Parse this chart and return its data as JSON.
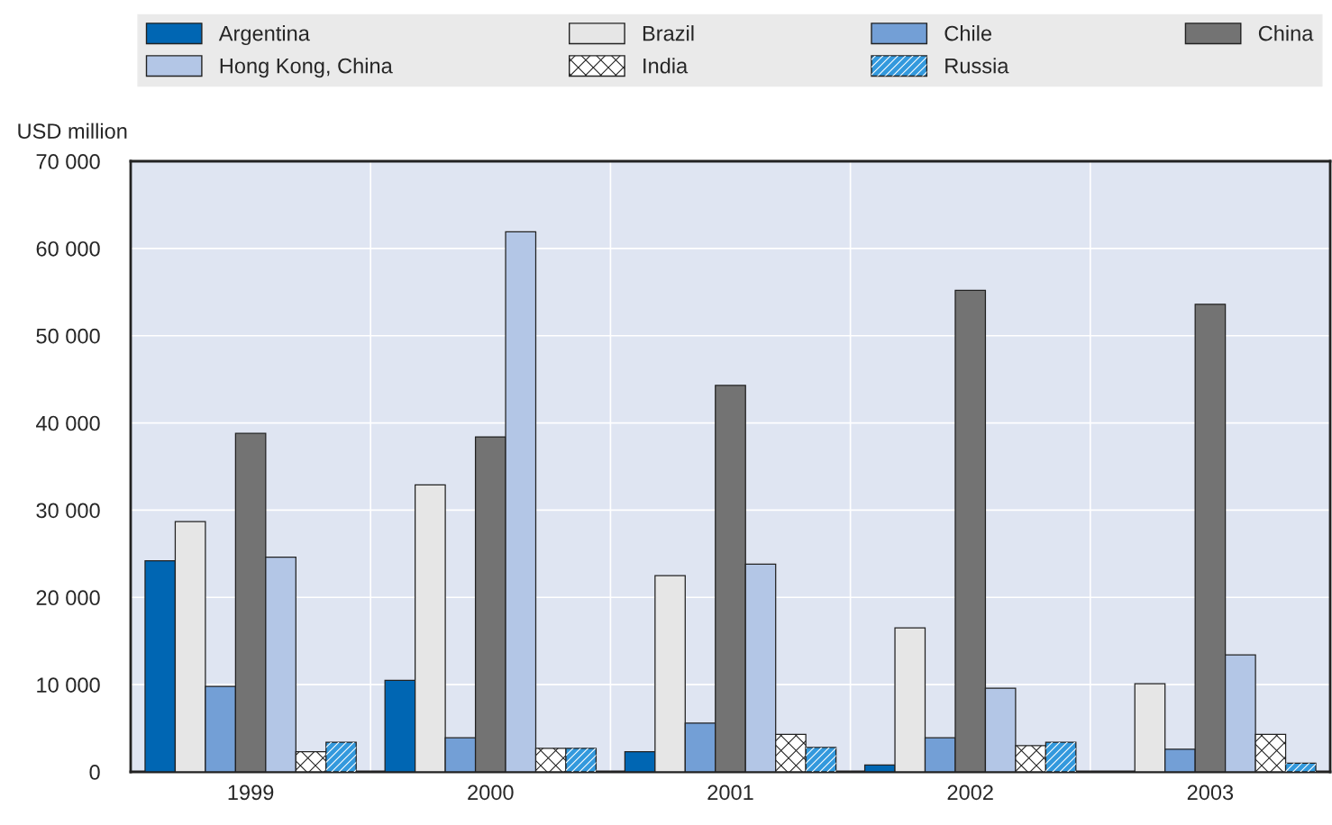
{
  "chart_data": {
    "type": "bar",
    "ylabel": "USD million",
    "categories": [
      "1999",
      "2000",
      "2001",
      "2002",
      "2003"
    ],
    "series": [
      {
        "name": "Argentina",
        "color": "#0066b3",
        "values": [
          24200,
          10500,
          2300,
          800,
          null
        ]
      },
      {
        "name": "Brazil",
        "color": "#e6e6e6",
        "values": [
          28700,
          32900,
          22500,
          16500,
          10100
        ]
      },
      {
        "name": "Chile",
        "color": "#739fd6",
        "values": [
          9800,
          3900,
          5600,
          3900,
          2600
        ]
      },
      {
        "name": "China",
        "color": "#737373",
        "values": [
          38800,
          38400,
          44300,
          55200,
          53600
        ]
      },
      {
        "name": "Hong Kong, China",
        "color": "#b3c6e6",
        "values": [
          24600,
          61900,
          23800,
          9600,
          13400
        ]
      },
      {
        "name": "India",
        "color": "#ffffff",
        "values": [
          2300,
          2700,
          4300,
          3000,
          4300
        ]
      },
      {
        "name": "Russia",
        "color": "#3399dd",
        "values": [
          3400,
          2700,
          2800,
          3400,
          1000
        ]
      }
    ],
    "ylim": [
      0,
      70000
    ],
    "yticks": [
      {
        "value": 0,
        "label": "0"
      },
      {
        "value": 10000,
        "label": "10 000"
      },
      {
        "value": 20000,
        "label": "20 000"
      },
      {
        "value": 30000,
        "label": "30 000"
      },
      {
        "value": 40000,
        "label": "40 000"
      },
      {
        "value": 50000,
        "label": "50 000"
      },
      {
        "value": 60000,
        "label": "60 000"
      },
      {
        "value": 70000,
        "label": "70 000"
      }
    ],
    "grid": true,
    "legend": "top"
  }
}
